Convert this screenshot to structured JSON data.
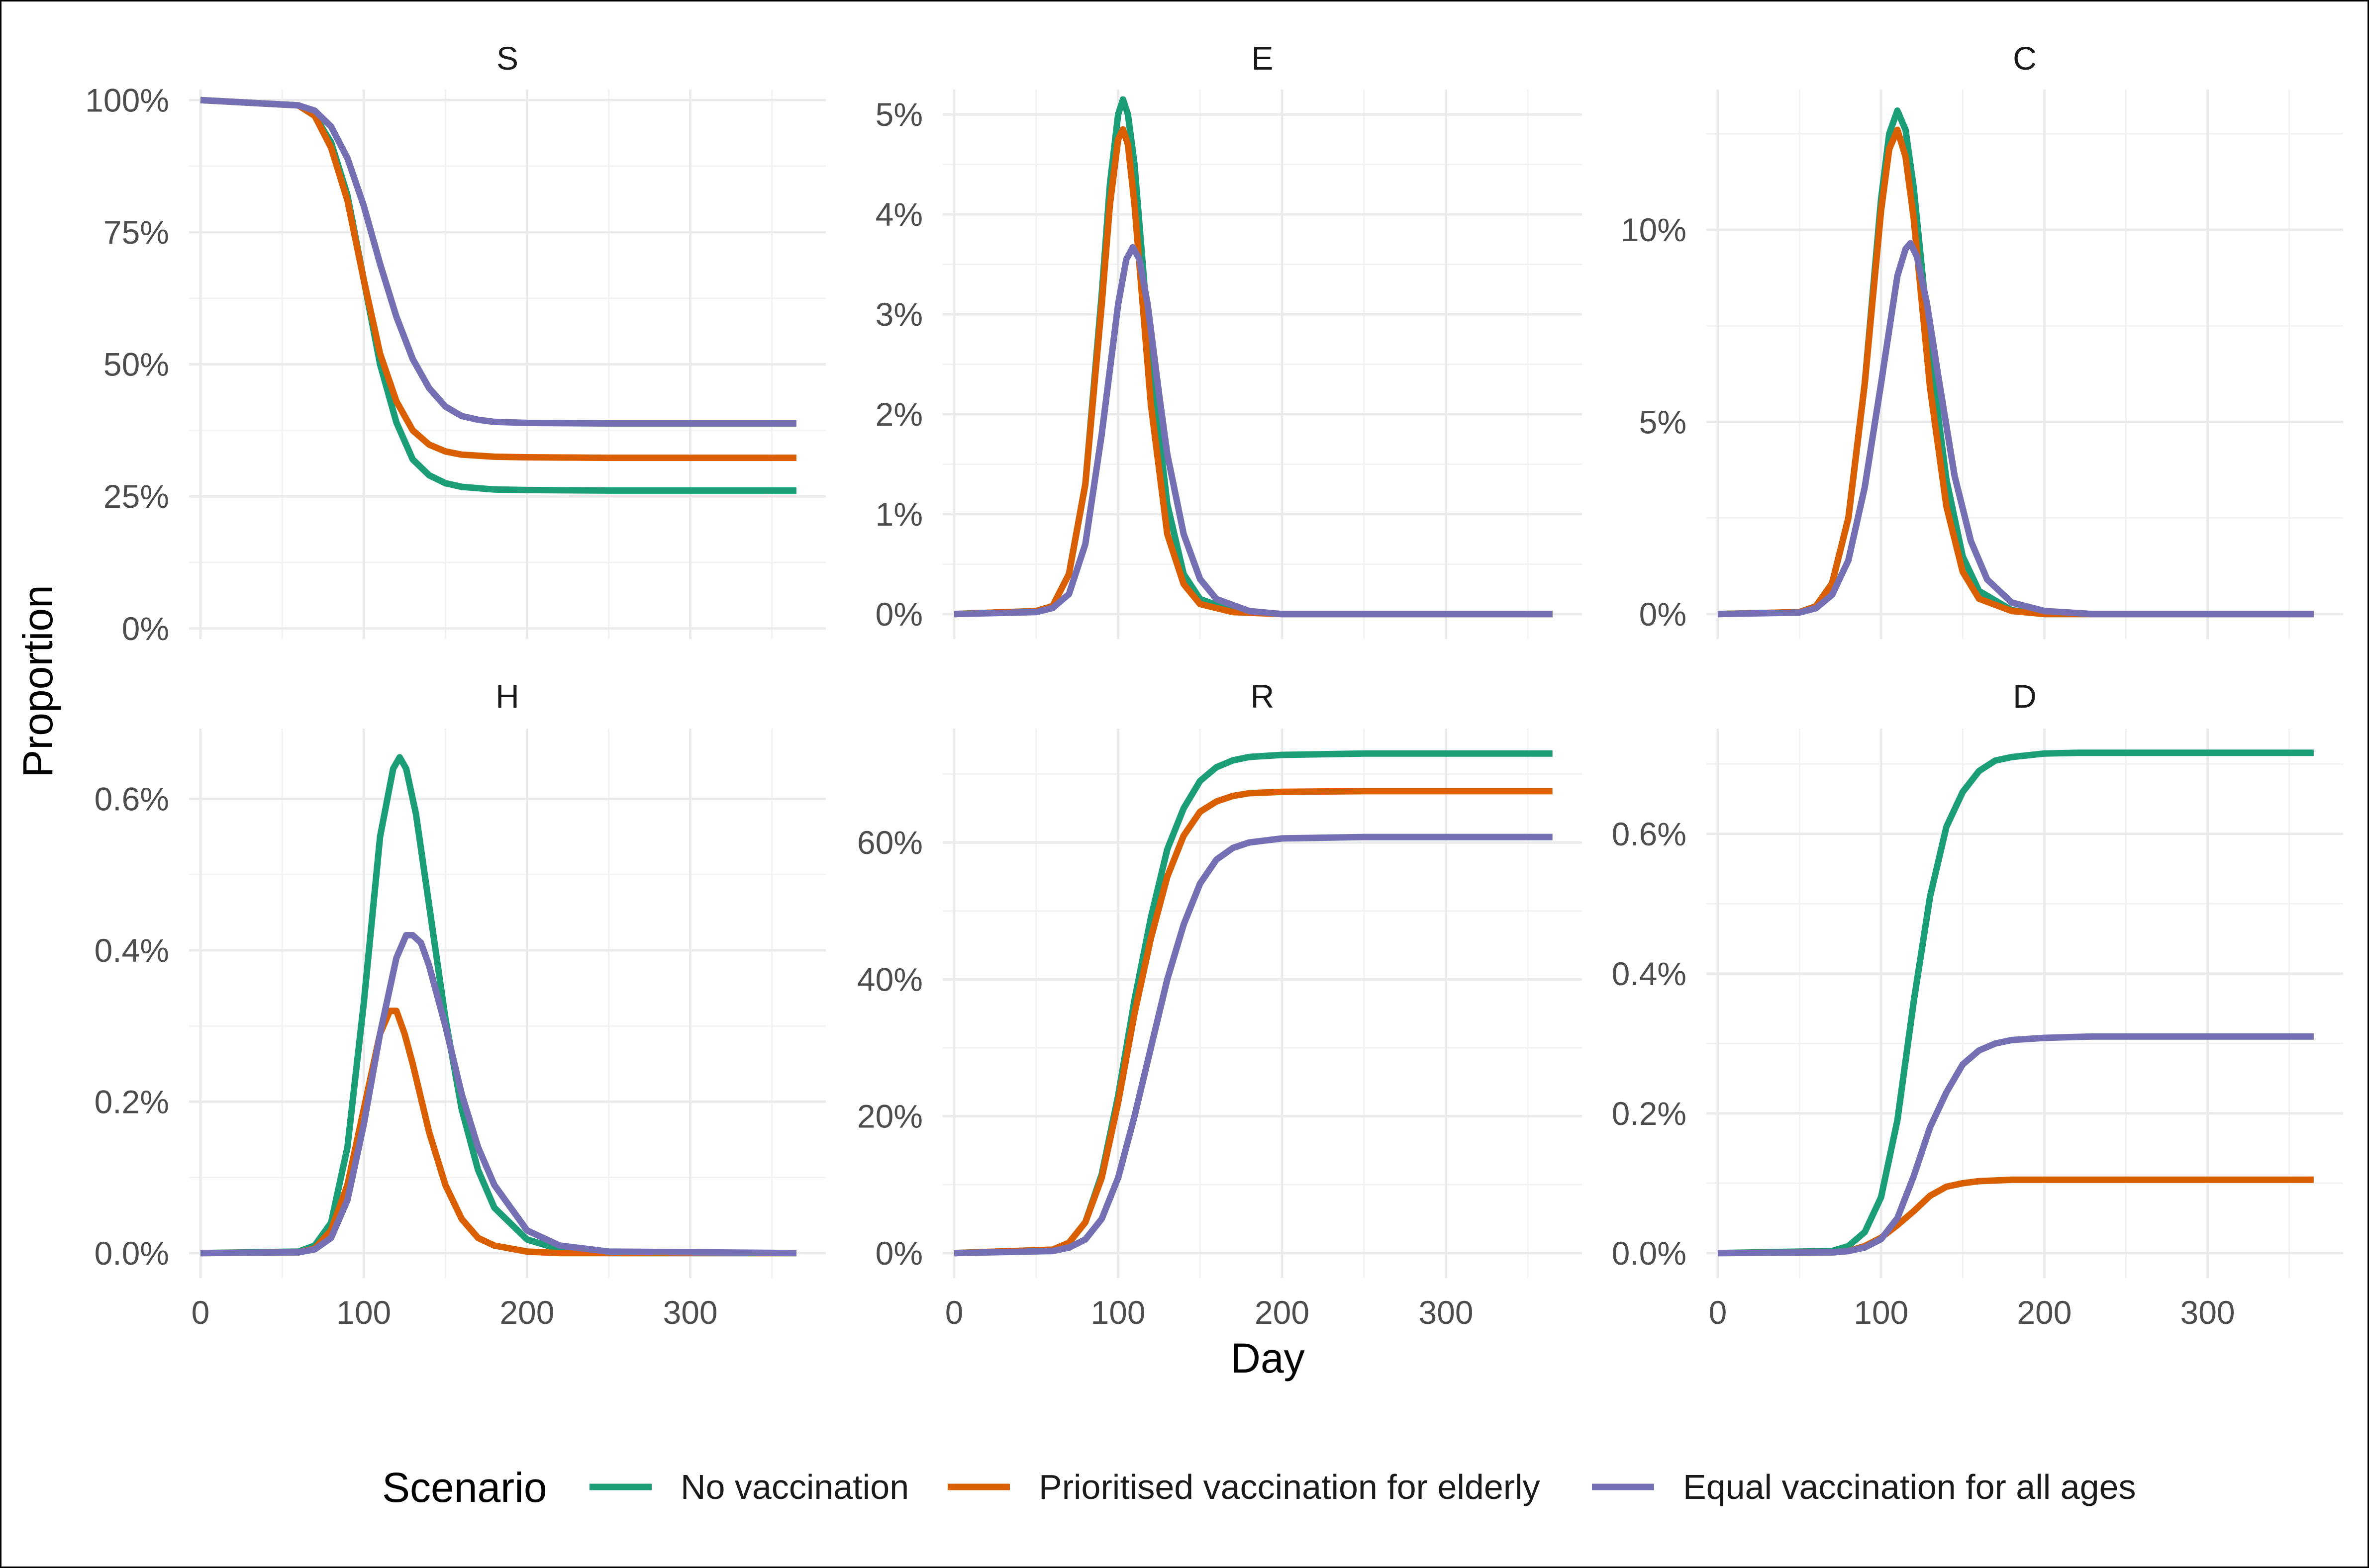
{
  "chart_data": {
    "type": "line",
    "xlabel": "Day",
    "ylabel": "Proportion",
    "legend": {
      "title": "Scenario",
      "position": "bottom",
      "entries": [
        "No vaccination",
        "Prioritised vaccination for elderly",
        "Equal vaccination for all ages"
      ]
    },
    "colors": {
      "No vaccination": "#1b9e77",
      "Prioritised vaccination for elderly": "#d95f02",
      "Equal vaccination for all ages": "#7570b3"
    },
    "grid": true,
    "x_ticks": [
      0,
      100,
      200,
      300
    ],
    "x_tick_labels": [
      "0",
      "100",
      "200",
      "300"
    ],
    "xlim": [
      -7,
      383
    ],
    "panels": [
      {
        "title": "S",
        "ylim": [
          -0.02,
          1.02
        ],
        "y_ticks": [
          0,
          0.25,
          0.5,
          0.75,
          1.0
        ],
        "y_tick_labels": [
          "0%",
          "25%",
          "50%",
          "75%",
          "100%"
        ],
        "series": [
          {
            "name": "No vaccination",
            "x": [
              0,
              60,
              70,
              80,
              90,
              100,
              110,
              120,
              130,
              140,
              150,
              160,
              180,
              200,
              250,
              365
            ],
            "y": [
              1.0,
              0.99,
              0.97,
              0.92,
              0.82,
              0.66,
              0.5,
              0.39,
              0.32,
              0.29,
              0.275,
              0.268,
              0.263,
              0.262,
              0.261,
              0.261
            ]
          },
          {
            "name": "Prioritised vaccination for elderly",
            "x": [
              0,
              60,
              70,
              80,
              90,
              100,
              110,
              120,
              130,
              140,
              150,
              160,
              180,
              200,
              250,
              365
            ],
            "y": [
              1.0,
              0.99,
              0.97,
              0.91,
              0.81,
              0.66,
              0.52,
              0.43,
              0.375,
              0.348,
              0.335,
              0.329,
              0.325,
              0.324,
              0.323,
              0.323
            ]
          },
          {
            "name": "Equal vaccination for all ages",
            "x": [
              0,
              60,
              70,
              80,
              90,
              100,
              110,
              120,
              130,
              140,
              150,
              160,
              170,
              180,
              200,
              250,
              365
            ],
            "y": [
              1.0,
              0.99,
              0.98,
              0.95,
              0.89,
              0.8,
              0.69,
              0.59,
              0.51,
              0.455,
              0.42,
              0.402,
              0.395,
              0.391,
              0.389,
              0.388,
              0.388
            ]
          }
        ]
      },
      {
        "title": "E",
        "ylim": [
          -0.0025,
          0.0525
        ],
        "y_ticks": [
          0,
          0.01,
          0.02,
          0.03,
          0.04,
          0.05
        ],
        "y_tick_labels": [
          "0%",
          "1%",
          "2%",
          "3%",
          "4%",
          "5%"
        ],
        "series": [
          {
            "name": "No vaccination",
            "x": [
              0,
              50,
              60,
              70,
              80,
              90,
              95,
              100,
              103,
              106,
              110,
              115,
              120,
              130,
              140,
              150,
              170,
              200,
              365
            ],
            "y": [
              0,
              0.0003,
              0.0008,
              0.004,
              0.013,
              0.032,
              0.043,
              0.05,
              0.0515,
              0.05,
              0.045,
              0.035,
              0.025,
              0.011,
              0.004,
              0.0015,
              0.0003,
              0,
              0
            ]
          },
          {
            "name": "Prioritised vaccination for elderly",
            "x": [
              0,
              50,
              60,
              70,
              80,
              90,
              95,
              100,
              103,
              106,
              110,
              115,
              120,
              130,
              140,
              150,
              170,
              200,
              365
            ],
            "y": [
              0,
              0.0003,
              0.0008,
              0.004,
              0.013,
              0.031,
              0.041,
              0.0475,
              0.0485,
              0.047,
              0.041,
              0.031,
              0.021,
              0.008,
              0.003,
              0.001,
              0.0002,
              0,
              0
            ]
          },
          {
            "name": "Equal vaccination for all ages",
            "x": [
              0,
              50,
              60,
              70,
              80,
              90,
              100,
              105,
              109,
              113,
              118,
              125,
              130,
              140,
              150,
              160,
              180,
              200,
              365
            ],
            "y": [
              0,
              0.0002,
              0.0006,
              0.002,
              0.007,
              0.018,
              0.031,
              0.0355,
              0.0367,
              0.0355,
              0.031,
              0.022,
              0.016,
              0.008,
              0.0035,
              0.0015,
              0.0003,
              0,
              0
            ]
          }
        ]
      },
      {
        "title": "C",
        "ylim": [
          -0.0065,
          0.1365
        ],
        "y_ticks": [
          0,
          0.05,
          0.1
        ],
        "y_tick_labels": [
          "0%",
          "5%",
          "10%"
        ],
        "series": [
          {
            "name": "No vaccination",
            "x": [
              0,
              50,
              60,
              70,
              80,
              90,
              100,
              105,
              110,
              115,
              120,
              125,
              130,
              140,
              150,
              160,
              180,
              200,
              365
            ],
            "y": [
              0,
              0.0005,
              0.002,
              0.008,
              0.025,
              0.06,
              0.108,
              0.125,
              0.131,
              0.126,
              0.111,
              0.09,
              0.068,
              0.035,
              0.015,
              0.006,
              0.001,
              0,
              0
            ]
          },
          {
            "name": "Prioritised vaccination for elderly",
            "x": [
              0,
              50,
              60,
              70,
              80,
              90,
              100,
              105,
              110,
              115,
              120,
              125,
              130,
              140,
              150,
              160,
              180,
              200,
              365
            ],
            "y": [
              0,
              0.0005,
              0.002,
              0.008,
              0.025,
              0.06,
              0.105,
              0.121,
              0.126,
              0.119,
              0.103,
              0.081,
              0.059,
              0.028,
              0.011,
              0.004,
              0.0008,
              0,
              0
            ]
          },
          {
            "name": "Equal vaccination for all ages",
            "x": [
              0,
              50,
              60,
              70,
              80,
              90,
              100,
              110,
              115,
              118,
              122,
              128,
              135,
              145,
              155,
              165,
              180,
              200,
              230,
              365
            ],
            "y": [
              0,
              0.0004,
              0.0015,
              0.005,
              0.014,
              0.033,
              0.06,
              0.088,
              0.095,
              0.0965,
              0.093,
              0.081,
              0.062,
              0.036,
              0.019,
              0.009,
              0.003,
              0.0008,
              0,
              0
            ]
          }
        ]
      },
      {
        "title": "H",
        "ylim": [
          -0.00033,
          0.00693
        ],
        "y_ticks": [
          0,
          0.002,
          0.004,
          0.006
        ],
        "y_tick_labels": [
          "0.0%",
          "0.2%",
          "0.4%",
          "0.6%"
        ],
        "series": [
          {
            "name": "No vaccination",
            "x": [
              0,
              60,
              70,
              80,
              90,
              100,
              110,
              118,
              122,
              126,
              132,
              140,
              150,
              160,
              170,
              180,
              200,
              220,
              250,
              365
            ],
            "y": [
              0,
              2e-05,
              0.0001,
              0.0004,
              0.0014,
              0.0033,
              0.0055,
              0.0064,
              0.00655,
              0.0064,
              0.0058,
              0.0046,
              0.0031,
              0.0019,
              0.0011,
              0.0006,
              0.00018,
              5e-05,
              0,
              0
            ]
          },
          {
            "name": "Prioritised vaccination for elderly",
            "x": [
              0,
              60,
              70,
              80,
              90,
              100,
              110,
              116,
              120,
              125,
              130,
              140,
              150,
              160,
              170,
              180,
              200,
              220,
              250,
              365
            ],
            "y": [
              0,
              1e-05,
              6e-05,
              0.0003,
              0.0009,
              0.0019,
              0.0029,
              0.0032,
              0.0032,
              0.0029,
              0.0025,
              0.0016,
              0.0009,
              0.00045,
              0.0002,
              0.0001,
              2e-05,
              0,
              0,
              0
            ]
          },
          {
            "name": "Equal vaccination for all ages",
            "x": [
              0,
              60,
              70,
              80,
              90,
              100,
              110,
              120,
              126,
              130,
              135,
              140,
              150,
              160,
              170,
              180,
              200,
              220,
              250,
              365
            ],
            "y": [
              0,
              1e-05,
              5e-05,
              0.0002,
              0.0007,
              0.0017,
              0.0029,
              0.0039,
              0.0042,
              0.0042,
              0.0041,
              0.0038,
              0.003,
              0.0021,
              0.0014,
              0.0009,
              0.0003,
              0.0001,
              2e-05,
              0
            ]
          }
        ]
      },
      {
        "title": "R",
        "ylim": [
          -0.0365,
          0.7665
        ],
        "y_ticks": [
          0,
          0.2,
          0.4,
          0.6
        ],
        "y_tick_labels": [
          "0%",
          "20%",
          "40%",
          "60%"
        ],
        "series": [
          {
            "name": "No vaccination",
            "x": [
              0,
              60,
              70,
              80,
              90,
              100,
              110,
              120,
              130,
              140,
              150,
              160,
              170,
              180,
              200,
              250,
              365
            ],
            "y": [
              0,
              0.005,
              0.015,
              0.045,
              0.115,
              0.23,
              0.37,
              0.49,
              0.59,
              0.65,
              0.69,
              0.71,
              0.72,
              0.725,
              0.728,
              0.73,
              0.73
            ]
          },
          {
            "name": "Prioritised vaccination for elderly",
            "x": [
              0,
              60,
              70,
              80,
              90,
              100,
              110,
              120,
              130,
              140,
              150,
              160,
              170,
              180,
              200,
              250,
              365
            ],
            "y": [
              0,
              0.005,
              0.015,
              0.045,
              0.11,
              0.22,
              0.35,
              0.46,
              0.55,
              0.61,
              0.645,
              0.66,
              0.668,
              0.672,
              0.674,
              0.675,
              0.675
            ]
          },
          {
            "name": "Equal vaccination for all ages",
            "x": [
              0,
              60,
              70,
              80,
              90,
              100,
              110,
              120,
              130,
              140,
              150,
              160,
              170,
              180,
              200,
              250,
              365
            ],
            "y": [
              0,
              0.003,
              0.008,
              0.02,
              0.05,
              0.11,
              0.2,
              0.3,
              0.4,
              0.48,
              0.54,
              0.575,
              0.592,
              0.6,
              0.606,
              0.608,
              0.608
            ]
          }
        ]
      },
      {
        "title": "D",
        "ylim": [
          -0.0003575,
          0.0075075
        ],
        "y_ticks": [
          0,
          0.002,
          0.004,
          0.006
        ],
        "y_tick_labels": [
          "0.0%",
          "0.2%",
          "0.4%",
          "0.6%"
        ],
        "series": [
          {
            "name": "No vaccination",
            "x": [
              0,
              70,
              80,
              90,
              100,
              110,
              120,
              130,
              140,
              150,
              160,
              170,
              180,
              200,
              220,
              250,
              365
            ],
            "y": [
              0,
              3e-05,
              0.0001,
              0.0003,
              0.0008,
              0.0019,
              0.0036,
              0.0051,
              0.0061,
              0.0066,
              0.0069,
              0.00705,
              0.0071,
              0.00715,
              0.00716,
              0.00716,
              0.00716
            ]
          },
          {
            "name": "Prioritised vaccination for elderly",
            "x": [
              0,
              70,
              80,
              90,
              100,
              110,
              120,
              130,
              140,
              150,
              160,
              170,
              180,
              200,
              250,
              365
            ],
            "y": [
              0,
              1e-05,
              3e-05,
              0.0001,
              0.00022,
              0.0004,
              0.0006,
              0.00082,
              0.00095,
              0.001,
              0.00103,
              0.00104,
              0.00105,
              0.00105,
              0.00105,
              0.00105
            ]
          },
          {
            "name": "Equal vaccination for all ages",
            "x": [
              0,
              70,
              80,
              90,
              100,
              110,
              120,
              130,
              140,
              150,
              160,
              170,
              180,
              200,
              230,
              365
            ],
            "y": [
              0,
              1e-05,
              3e-05,
              8e-05,
              0.0002,
              0.0005,
              0.0011,
              0.0018,
              0.0023,
              0.0027,
              0.0029,
              0.003,
              0.00305,
              0.00308,
              0.0031,
              0.0031
            ]
          }
        ]
      }
    ]
  }
}
